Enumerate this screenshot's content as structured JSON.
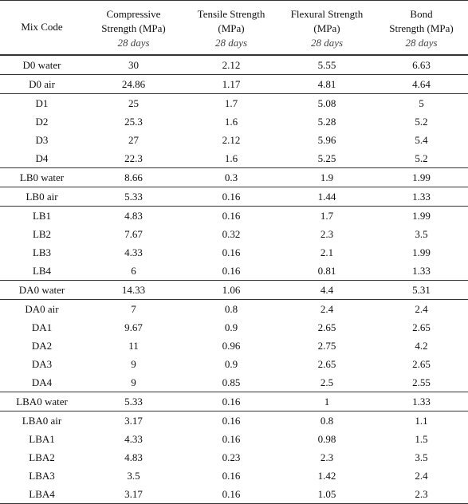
{
  "table": {
    "header": {
      "mix_code": "Mix Code",
      "columns": [
        {
          "lines": [
            "Compressive",
            "Strength (MPa)"
          ],
          "sub": "28 days"
        },
        {
          "lines": [
            "Tensile Strength",
            "(MPa)"
          ],
          "sub": "28 days"
        },
        {
          "lines": [
            "Flexural Strength",
            "(MPa)"
          ],
          "sub": "28 days"
        },
        {
          "lines": [
            "Bond",
            "Strength (MPa)"
          ],
          "sub": "28 days"
        }
      ]
    },
    "groups": [
      [
        [
          "D0 water",
          "30",
          "2.12",
          "5.55",
          "6.63"
        ]
      ],
      [
        [
          "D0 air",
          "24.86",
          "1.17",
          "4.81",
          "4.64"
        ]
      ],
      [
        [
          "D1",
          "25",
          "1.7",
          "5.08",
          "5"
        ],
        [
          "D2",
          "25.3",
          "1.6",
          "5.28",
          "5.2"
        ],
        [
          "D3",
          "27",
          "2.12",
          "5.96",
          "5.4"
        ],
        [
          "D4",
          "22.3",
          "1.6",
          "5.25",
          "5.2"
        ]
      ],
      [
        [
          "LB0 water",
          "8.66",
          "0.3",
          "1.9",
          "1.99"
        ]
      ],
      [
        [
          "LB0 air",
          "5.33",
          "0.16",
          "1.44",
          "1.33"
        ]
      ],
      [
        [
          "LB1",
          "4.83",
          "0.16",
          "1.7",
          "1.99"
        ],
        [
          "LB2",
          "7.67",
          "0.32",
          "2.3",
          "3.5"
        ],
        [
          "LB3",
          "4.33",
          "0.16",
          "2.1",
          "1.99"
        ],
        [
          "LB4",
          "6",
          "0.16",
          "0.81",
          "1.33"
        ]
      ],
      [
        [
          "DA0 water",
          "14.33",
          "1.06",
          "4.4",
          "5.31"
        ]
      ],
      [
        [
          "DA0 air",
          "7",
          "0.8",
          "2.4",
          "2.4"
        ],
        [
          "DA1",
          "9.67",
          "0.9",
          "2.65",
          "2.65"
        ],
        [
          "DA2",
          "11",
          "0.96",
          "2.75",
          "4.2"
        ],
        [
          "DA3",
          "9",
          "0.9",
          "2.65",
          "2.65"
        ],
        [
          "DA4",
          "9",
          "0.85",
          "2.5",
          "2.55"
        ]
      ],
      [
        [
          "LBA0 water",
          "5.33",
          "0.16",
          "1",
          "1.33"
        ]
      ],
      [
        [
          "LBA0 air",
          "3.17",
          "0.16",
          "0.8",
          "1.1"
        ],
        [
          "LBA1",
          "4.33",
          "0.16",
          "0.98",
          "1.5"
        ],
        [
          "LBA2",
          "4.83",
          "0.23",
          "2.3",
          "3.5"
        ],
        [
          "LBA3",
          "3.5",
          "0.16",
          "1.42",
          "2.4"
        ],
        [
          "LBA4",
          "3.17",
          "0.16",
          "1.05",
          "2.3"
        ]
      ]
    ]
  }
}
